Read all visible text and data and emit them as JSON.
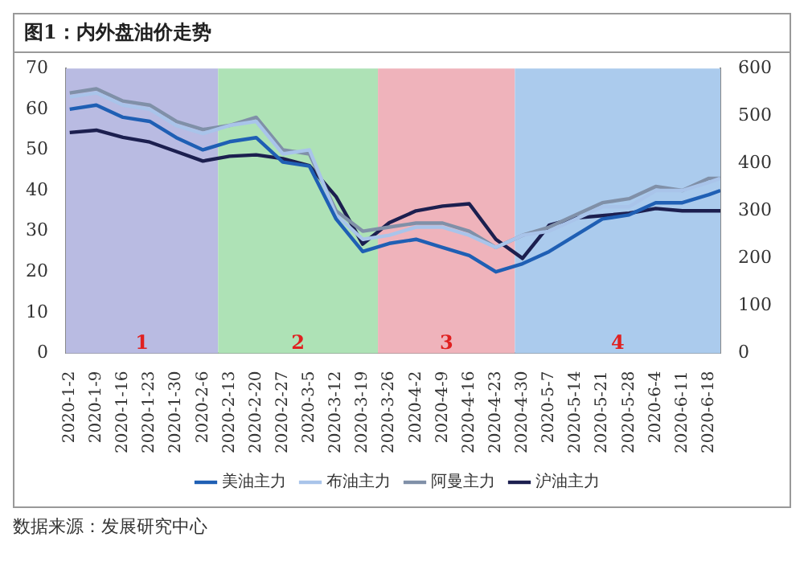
{
  "chart_data": {
    "type": "line",
    "title": "图1：内外盘油价走势",
    "annotations": [
      "数据来源：发展研究中心"
    ],
    "x": [
      "2020-01-02",
      "2020-01-09",
      "2020-01-16",
      "2020-01-23",
      "2020-01-30",
      "2020-02-06",
      "2020-02-13",
      "2020-02-20",
      "2020-02-27",
      "2020-03-05",
      "2020-03-12",
      "2020-03-19",
      "2020-03-26",
      "2020-04-02",
      "2020-04-09",
      "2020-04-16",
      "2020-04-23",
      "2020-04-30",
      "2020-05-07",
      "2020-05-14",
      "2020-05-21",
      "2020-05-28",
      "2020-06-04",
      "2020-06-11",
      "2020-06-18",
      "2020-06-21"
    ],
    "series": [
      {
        "name": "美油主力",
        "color": "#1f5fb4",
        "values": [
          60,
          61,
          58,
          57,
          53,
          50,
          52,
          53,
          47,
          46,
          33,
          25,
          27,
          28,
          26,
          24,
          20,
          22,
          25,
          29,
          33,
          34,
          37,
          37,
          39,
          40
        ]
      },
      {
        "name": "布油主力",
        "color": "#a9c4ea",
        "values": [
          63,
          64,
          61,
          60,
          56,
          54,
          56,
          57,
          49,
          50,
          34,
          28,
          29,
          31,
          31,
          29,
          26,
          29,
          30,
          33,
          36,
          36,
          40,
          40,
          42,
          43
        ]
      },
      {
        "name": "阿曼主力",
        "color": "#8090a8",
        "values": [
          64,
          65,
          62,
          61,
          57,
          55,
          56,
          58,
          50,
          49,
          35,
          30,
          31,
          32,
          32,
          30,
          26,
          29,
          31,
          34,
          37,
          38,
          41,
          40,
          43,
          43
        ]
      },
      {
        "name": "沪油主力",
        "color": "#1c1f4f",
        "axis": "y2",
        "values": [
          465,
          470,
          455,
          445,
          425,
          405,
          415,
          418,
          410,
          395,
          330,
          230,
          275,
          300,
          310,
          315,
          240,
          200,
          270,
          285,
          290,
          295,
          305,
          300,
          300,
          300
        ]
      }
    ],
    "xlim": [
      "2020-01-01",
      "2020-06-21"
    ],
    "xticks": [
      {
        "value": "2020-01-02",
        "label": "2020-1-2"
      },
      {
        "value": "2020-01-09",
        "label": "2020-1-9"
      },
      {
        "value": "2020-01-16",
        "label": "2020-1-16"
      },
      {
        "value": "2020-01-23",
        "label": "2020-1-23"
      },
      {
        "value": "2020-01-30",
        "label": "2020-1-30"
      },
      {
        "value": "2020-02-06",
        "label": "2020-2-6"
      },
      {
        "value": "2020-02-13",
        "label": "2020-2-13"
      },
      {
        "value": "2020-02-20",
        "label": "2020-2-20"
      },
      {
        "value": "2020-02-27",
        "label": "2020-2-27"
      },
      {
        "value": "2020-03-05",
        "label": "2020-3-5"
      },
      {
        "value": "2020-03-12",
        "label": "2020-3-12"
      },
      {
        "value": "2020-03-19",
        "label": "2020-3-19"
      },
      {
        "value": "2020-03-26",
        "label": "2020-3-26"
      },
      {
        "value": "2020-04-02",
        "label": "2020-4-2"
      },
      {
        "value": "2020-04-09",
        "label": "2020-4-9"
      },
      {
        "value": "2020-04-16",
        "label": "2020-4-16"
      },
      {
        "value": "2020-04-23",
        "label": "2020-4-23"
      },
      {
        "value": "2020-04-30",
        "label": "2020-4-30"
      },
      {
        "value": "2020-05-07",
        "label": "2020-5-7"
      },
      {
        "value": "2020-05-14",
        "label": "2020-5-14"
      },
      {
        "value": "2020-05-21",
        "label": "2020-5-21"
      },
      {
        "value": "2020-05-28",
        "label": "2020-5-28"
      },
      {
        "value": "2020-06-04",
        "label": "2020-6-4"
      },
      {
        "value": "2020-06-11",
        "label": "2020-6-11"
      },
      {
        "value": "2020-06-18",
        "label": "2020-6-18"
      }
    ],
    "ylim": [
      0,
      70
    ],
    "yticks": [
      0,
      10,
      20,
      30,
      40,
      50,
      60,
      70
    ],
    "y2lim": [
      0,
      600
    ],
    "y2ticks": [
      0,
      100,
      200,
      300,
      400,
      500,
      600
    ],
    "bands": [
      {
        "axis": "x",
        "from": "2020-01-01",
        "to": "2020-02-10",
        "label": "1",
        "color": "#b9bbe2"
      },
      {
        "axis": "x",
        "from": "2020-02-10",
        "to": "2020-03-23",
        "label": "2",
        "color": "#aee2b6"
      },
      {
        "axis": "x",
        "from": "2020-03-23",
        "to": "2020-04-28",
        "label": "3",
        "color": "#efb3bb"
      },
      {
        "axis": "x",
        "from": "2020-04-28",
        "to": "2020-06-21",
        "label": "4",
        "color": "#abcbed"
      }
    ],
    "legend": "bottom"
  }
}
